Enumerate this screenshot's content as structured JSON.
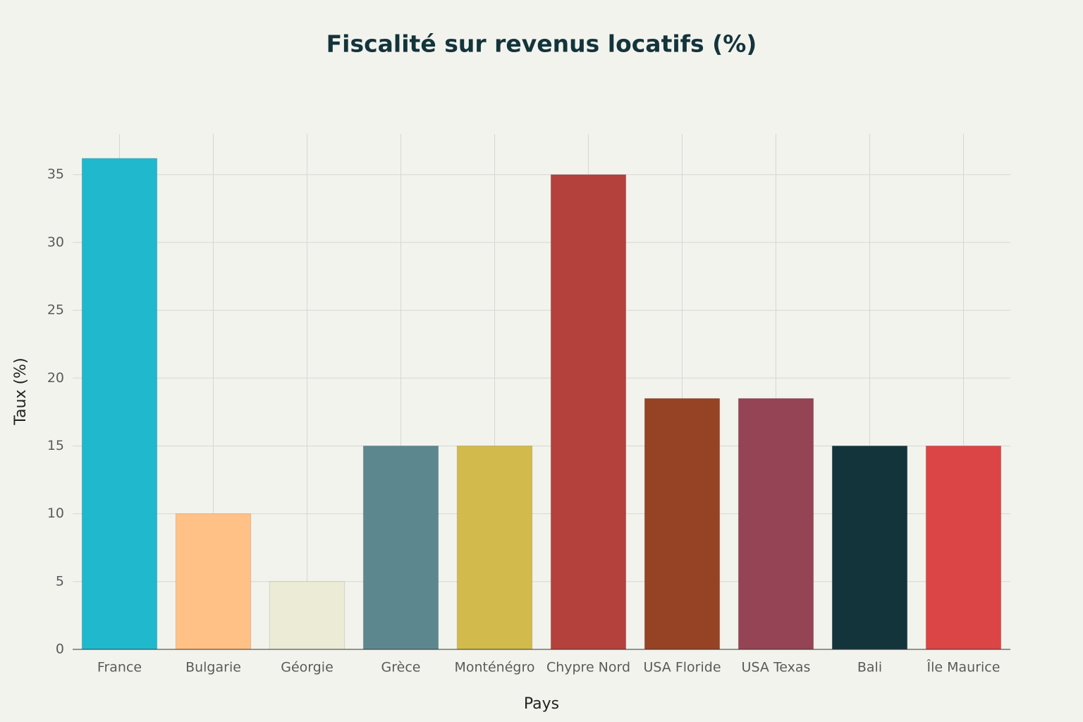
{
  "chart_data": {
    "type": "bar",
    "title": "Fiscalité sur revenus locatifs (%)",
    "x_label": "Pays",
    "y_label": "Taux (%)",
    "categories": [
      "France",
      "Bulgarie",
      "Géorgie",
      "Grèce",
      "Monténégro",
      "Chypre Nord",
      "USA Floride",
      "USA Texas",
      "Bali",
      "Île Maurice"
    ],
    "values": [
      36.2,
      10,
      5,
      15,
      15,
      35,
      18.5,
      18.5,
      15,
      15
    ],
    "colors": [
      "#1fb8cd",
      "#ffc185",
      "#eceBd5",
      "#5d878f",
      "#d2ba4c",
      "#b4413c",
      "#964325",
      "#944454",
      "#13343b",
      "#db4545"
    ],
    "ylim": [
      0,
      38
    ],
    "yticks": [
      0,
      5,
      10,
      15,
      20,
      25,
      30,
      35
    ],
    "grid": true
  }
}
